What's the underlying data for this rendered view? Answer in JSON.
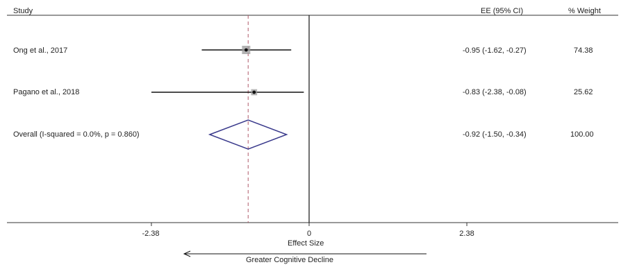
{
  "header": {
    "study_label": "Study",
    "ci_label": "EE (95% CI)",
    "weight_label": "% Weight"
  },
  "rows": [
    {
      "label": "Ong et al., 2017",
      "ci_text": "-0.95 (-1.62, -0.27)",
      "weight_text": "74.38"
    },
    {
      "label": "Pagano et al., 2018",
      "ci_text": "-0.83 (-2.38, -0.08)",
      "weight_text": "25.62"
    },
    {
      "label": "Overall  (I-squared = 0.0%, p = 0.860)",
      "ci_text": "-0.92 (-1.50, -0.34)",
      "weight_text": "100.00"
    }
  ],
  "axis": {
    "xlabel": "Effect Size",
    "direction_label": "Greater Cognitive Decline",
    "ticks": [
      "-2.38",
      "0",
      "2.38"
    ]
  },
  "colors": {
    "line": "#111111",
    "diamond": "#3a3a8c",
    "dashed_ref": "#b05a6a",
    "weight_box": "#9a9a9a"
  },
  "chart_data": {
    "type": "forest",
    "xlim": [
      -4.4,
      4.4
    ],
    "xticks": [
      -2.38,
      0,
      2.38
    ],
    "overall_reference": -0.92,
    "studies": [
      {
        "name": "Ong et al., 2017",
        "estimate": -0.95,
        "lower": -1.62,
        "upper": -0.27,
        "weight": 74.38
      },
      {
        "name": "Pagano et al., 2018",
        "estimate": -0.83,
        "lower": -2.38,
        "upper": -0.08,
        "weight": 25.62
      }
    ],
    "overall": {
      "name": "Overall",
      "estimate": -0.92,
      "lower": -1.5,
      "upper": -0.34,
      "weight": 100.0
    }
  }
}
